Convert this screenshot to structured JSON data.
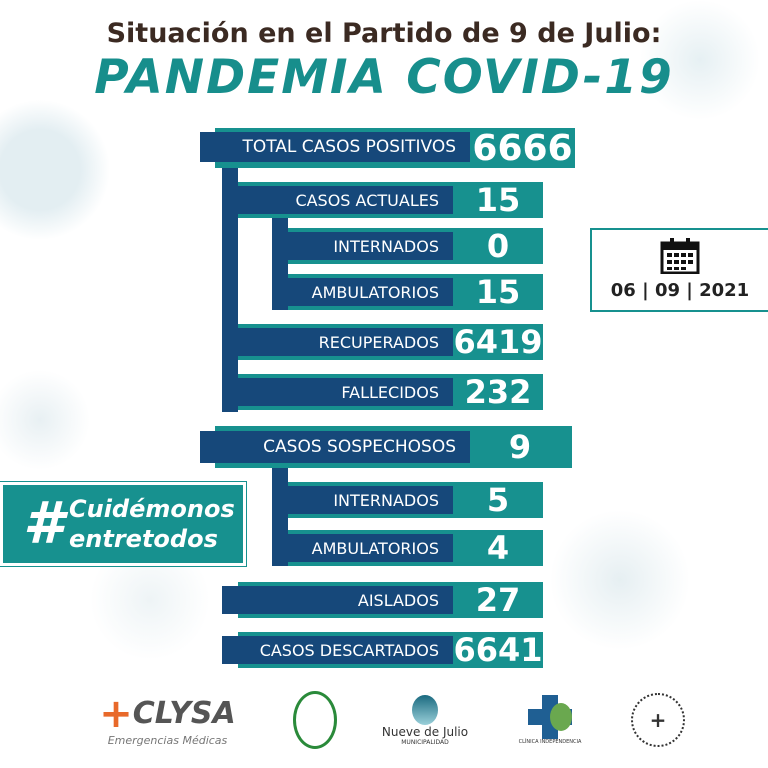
{
  "header": {
    "subtitle": "Situación en el Partido de 9 de Julio:",
    "title": "PANDEMIA COVID-19"
  },
  "stats": {
    "total": {
      "label": "TOTAL CASOS POSITIVOS",
      "value": "6666"
    },
    "actuales": {
      "label": "CASOS ACTUALES",
      "value": "15"
    },
    "internados": {
      "label": "INTERNADOS",
      "value": "0"
    },
    "ambulatorios": {
      "label": "AMBULATORIOS",
      "value": "15"
    },
    "recuperados": {
      "label": "RECUPERADOS",
      "value": "6419"
    },
    "fallecidos": {
      "label": "FALLECIDOS",
      "value": "232"
    },
    "sospechosos": {
      "label": "CASOS SOSPECHOSOS",
      "value": "9"
    },
    "sosp_internados": {
      "label": "INTERNADOS",
      "value": "5"
    },
    "sosp_ambulatorios": {
      "label": "AMBULATORIOS",
      "value": "4"
    },
    "aislados": {
      "label": "AISLADOS",
      "value": "27"
    },
    "descartados": {
      "label": "CASOS DESCARTADOS",
      "value": "6641"
    }
  },
  "date": {
    "icon": "calendar-icon",
    "text": "06 | 09 | 2021"
  },
  "hashtag": {
    "symbol": "#",
    "line1": "Cuidémonos",
    "line2": "entretodos"
  },
  "logos": {
    "clysa": "CLYSA",
    "clysa_sub": "Emergencias Médicas",
    "nueve": "Nueve de Julio",
    "nueve_sub": "MUNICIPALIDAD",
    "clinica": "CLÍNICA INDEPENDENCIA"
  },
  "colors": {
    "navy": "#16487a",
    "teal": "#17918f",
    "title_teal": "#178e8c"
  }
}
